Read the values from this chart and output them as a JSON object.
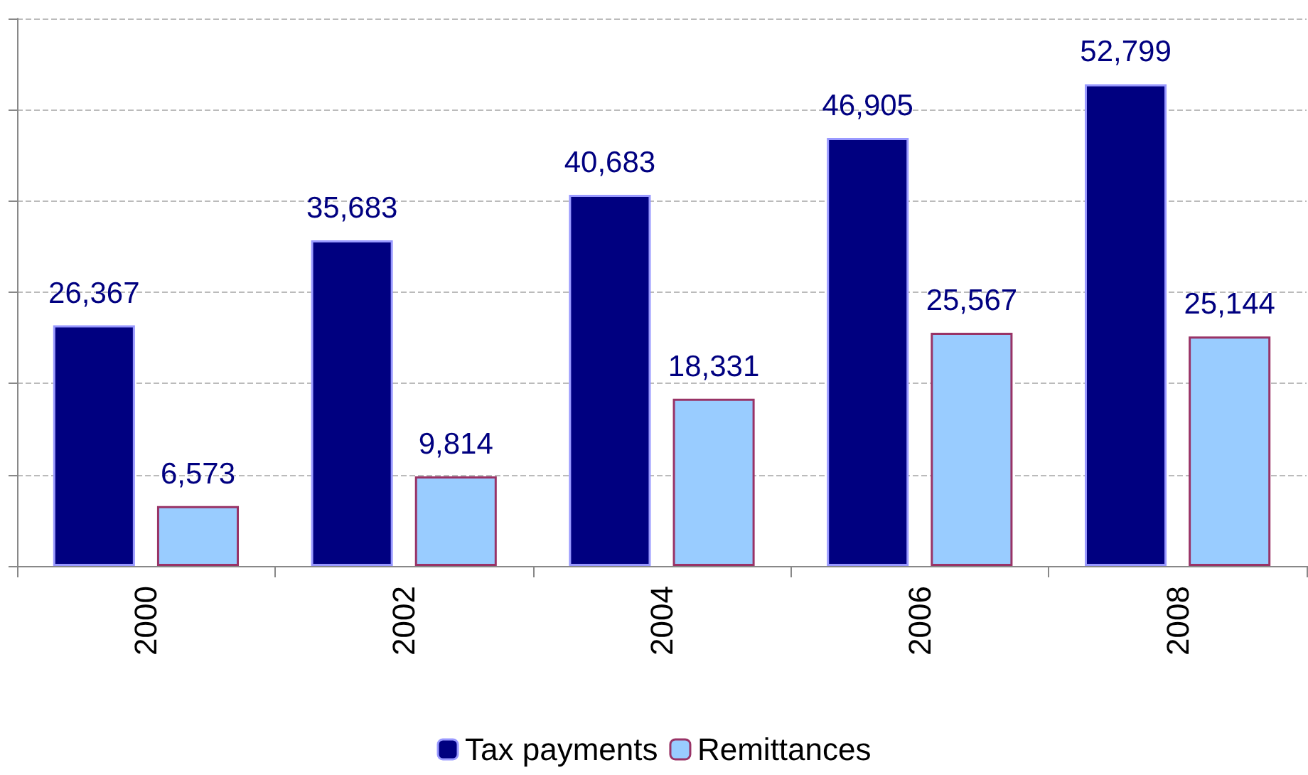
{
  "chart_data": {
    "type": "bar",
    "categories": [
      "2000",
      "2002",
      "2004",
      "2006",
      "2008"
    ],
    "series": [
      {
        "name": "Tax payments",
        "color": "#000080",
        "values": [
          26367,
          35683,
          40683,
          46905,
          52799
        ],
        "value_labels": [
          "26,367",
          "35,683",
          "40,683",
          "46,905",
          "52,799"
        ]
      },
      {
        "name": "Remittances",
        "color": "#99ccff",
        "values": [
          6573,
          9814,
          18331,
          25567,
          25144
        ],
        "value_labels": [
          "6,573",
          "9,814",
          "18,331",
          "25,567",
          "25,144"
        ]
      }
    ],
    "tick_labels": "x",
    "grid": "y",
    "legend": "bottom"
  }
}
